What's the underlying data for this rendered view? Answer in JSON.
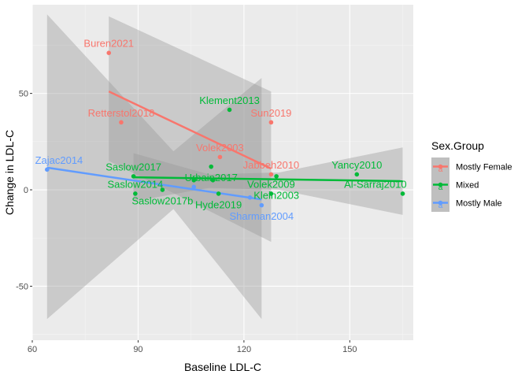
{
  "chart_data": {
    "type": "scatter",
    "title": "",
    "xlabel": "Baseline LDL-C",
    "ylabel": "Change in LDL-C",
    "xlim": [
      60,
      168
    ],
    "ylim": [
      -78,
      96
    ],
    "xticks": [
      60,
      90,
      120,
      150
    ],
    "yticks": [
      -50,
      0,
      50
    ],
    "grid": true,
    "legend": {
      "title": "Sex.Group",
      "placement": "right",
      "entries": [
        {
          "name": "Mostly Female",
          "color": "#F8766D"
        },
        {
          "name": "Mixed",
          "color": "#00BA38"
        },
        {
          "name": "Mostly Male",
          "color": "#619CFF"
        }
      ]
    },
    "series": [
      {
        "name": "Mostly Female",
        "color": "#F8766D",
        "points": [
          {
            "x": 81.7,
            "y": 71,
            "label": "Buren2021"
          },
          {
            "x": 85.2,
            "y": 35,
            "label": "Retterstol2018"
          },
          {
            "x": 127.7,
            "y": 35,
            "label": "Sun2019"
          },
          {
            "x": 113.2,
            "y": 17,
            "label": "Volek2003"
          },
          {
            "x": 127.7,
            "y": 8,
            "label": "Jabbeh2010"
          }
        ],
        "fit": {
          "x": [
            81.7,
            127.7
          ],
          "y": [
            51,
            11
          ]
        },
        "band": {
          "x": [
            81.7,
            127.7
          ],
          "upper": [
            90,
            51
          ],
          "lower": [
            15,
            -27
          ]
        }
      },
      {
        "name": "Mixed",
        "color": "#00BA38",
        "points": [
          {
            "x": 115.9,
            "y": 41.5,
            "label": "Klement2013"
          },
          {
            "x": 88.7,
            "y": 7,
            "label": "Saslow2017"
          },
          {
            "x": 110.7,
            "y": 12,
            "label": "Urbain2017"
          },
          {
            "x": 89.2,
            "y": -2,
            "label": "Saslow2014"
          },
          {
            "x": 96.9,
            "y": 0,
            "label": "Saslow2017b"
          },
          {
            "x": 105.8,
            "y": 5,
            "label": ""
          },
          {
            "x": 111.2,
            "y": 5,
            "label": ""
          },
          {
            "x": 112.8,
            "y": -2,
            "label": "Hyde2019"
          },
          {
            "x": 127.7,
            "y": -2,
            "label": "Volek2009"
          },
          {
            "x": 129.2,
            "y": 7,
            "label": "Klein2003"
          },
          {
            "x": 152,
            "y": 8,
            "label": "Yancy2010"
          },
          {
            "x": 165,
            "y": -2,
            "label": "Al-Sarraj2010"
          }
        ],
        "fit": {
          "x": [
            88.7,
            165
          ],
          "y": [
            6.5,
            4.5
          ]
        },
        "band": {
          "x": [
            88.7,
            110,
            130,
            165
          ],
          "upper": [
            19,
            8,
            9,
            22
          ],
          "lower": [
            -6,
            1,
            0,
            -13
          ]
        }
      },
      {
        "name": "Mostly Male",
        "color": "#619CFF",
        "points": [
          {
            "x": 64.2,
            "y": 10.5,
            "label": "Zajac2014"
          },
          {
            "x": 105.8,
            "y": 1.5,
            "label": ""
          },
          {
            "x": 121.7,
            "y": -4,
            "label": ""
          },
          {
            "x": 125,
            "y": -8,
            "label": "Sharman2004"
          }
        ],
        "fit": {
          "x": [
            64.2,
            125
          ],
          "y": [
            11.5,
            -5
          ]
        },
        "band": {
          "x": [
            64.2,
            100,
            125
          ],
          "upper": [
            91,
            20,
            58
          ],
          "lower": [
            -67,
            -10,
            -67
          ]
        }
      }
    ]
  }
}
